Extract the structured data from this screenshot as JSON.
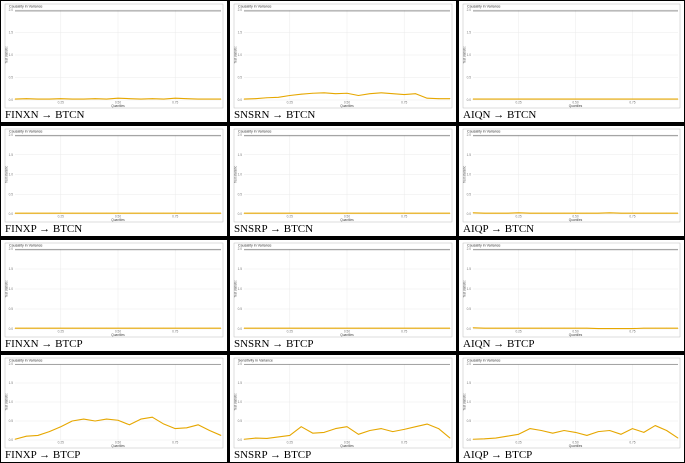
{
  "chart_data": [
    {
      "type": "line",
      "caption": "FINXN → BTCN",
      "title": "Causality in Variance",
      "xlabel": "Quantiles",
      "ylabel": "Test statistic",
      "y_ticks": [
        "2.0",
        "1.5",
        "1.0",
        "0.5",
        "0.0"
      ],
      "x_ticks": [
        "0.25",
        "0.50",
        "0.75"
      ],
      "ylim": [
        0,
        2
      ],
      "xlim": [
        0.05,
        0.95
      ],
      "x": [
        0.05,
        0.1,
        0.15,
        0.2,
        0.25,
        0.3,
        0.35,
        0.4,
        0.45,
        0.5,
        0.55,
        0.6,
        0.65,
        0.7,
        0.75,
        0.8,
        0.85,
        0.9,
        0.95
      ],
      "values": [
        0.02,
        0.03,
        0.02,
        0.02,
        0.03,
        0.02,
        0.02,
        0.03,
        0.02,
        0.04,
        0.03,
        0.02,
        0.03,
        0.02,
        0.04,
        0.03,
        0.02,
        0.02,
        0.02
      ]
    },
    {
      "type": "line",
      "caption": "SNSRN → BTCN",
      "title": "Causality in Variance",
      "xlabel": "Quantiles",
      "ylabel": "Test statistic",
      "y_ticks": [
        "2.0",
        "1.5",
        "1.0",
        "0.5",
        "0.0"
      ],
      "x_ticks": [
        "0.25",
        "0.50",
        "0.75"
      ],
      "ylim": [
        0,
        2
      ],
      "xlim": [
        0.05,
        0.95
      ],
      "x": [
        0.05,
        0.1,
        0.15,
        0.2,
        0.25,
        0.3,
        0.35,
        0.4,
        0.45,
        0.5,
        0.55,
        0.6,
        0.65,
        0.7,
        0.75,
        0.8,
        0.85,
        0.9,
        0.95
      ],
      "values": [
        0.02,
        0.03,
        0.05,
        0.06,
        0.1,
        0.13,
        0.15,
        0.16,
        0.14,
        0.15,
        0.1,
        0.14,
        0.16,
        0.14,
        0.12,
        0.14,
        0.04,
        0.03,
        0.03
      ]
    },
    {
      "type": "line",
      "caption": "AIQN → BTCN",
      "title": "Causality in Variance",
      "xlabel": "Quantiles",
      "ylabel": "Test statistic",
      "y_ticks": [
        "2.0",
        "1.5",
        "1.0",
        "0.5",
        "0.0"
      ],
      "x_ticks": [
        "0.25",
        "0.50",
        "0.75"
      ],
      "ylim": [
        0,
        2
      ],
      "xlim": [
        0.05,
        0.95
      ],
      "x": [
        0.05,
        0.1,
        0.15,
        0.2,
        0.25,
        0.3,
        0.35,
        0.4,
        0.45,
        0.5,
        0.55,
        0.6,
        0.65,
        0.7,
        0.75,
        0.8,
        0.85,
        0.9,
        0.95
      ],
      "values": [
        0.02,
        0.02,
        0.02,
        0.02,
        0.02,
        0.02,
        0.02,
        0.02,
        0.02,
        0.02,
        0.02,
        0.02,
        0.02,
        0.02,
        0.02,
        0.02,
        0.02,
        0.02,
        0.02
      ]
    },
    {
      "type": "line",
      "caption": "FINXP → BTCN",
      "title": "Causality in Variance",
      "xlabel": "Quantiles",
      "ylabel": "Test statistic",
      "y_ticks": [
        "2.0",
        "1.5",
        "1.0",
        "0.5",
        "0.0"
      ],
      "x_ticks": [
        "0.25",
        "0.50",
        "0.75"
      ],
      "ylim": [
        0,
        2
      ],
      "xlim": [
        0.05,
        0.95
      ],
      "x": [
        0.05,
        0.1,
        0.15,
        0.2,
        0.25,
        0.3,
        0.35,
        0.4,
        0.45,
        0.5,
        0.55,
        0.6,
        0.65,
        0.7,
        0.75,
        0.8,
        0.85,
        0.9,
        0.95
      ],
      "values": [
        0.02,
        0.02,
        0.02,
        0.02,
        0.02,
        0.02,
        0.02,
        0.02,
        0.02,
        0.02,
        0.02,
        0.02,
        0.02,
        0.02,
        0.02,
        0.02,
        0.02,
        0.02,
        0.02
      ]
    },
    {
      "type": "line",
      "caption": "SNSRP → BTCN",
      "title": "Causality in Variance",
      "xlabel": "Quantiles",
      "ylabel": "Test statistic",
      "y_ticks": [
        "2.0",
        "1.5",
        "1.0",
        "0.5",
        "0.0"
      ],
      "x_ticks": [
        "0.25",
        "0.50",
        "0.75"
      ],
      "ylim": [
        0,
        2
      ],
      "xlim": [
        0.05,
        0.95
      ],
      "x": [
        0.05,
        0.1,
        0.15,
        0.2,
        0.25,
        0.3,
        0.35,
        0.4,
        0.45,
        0.5,
        0.55,
        0.6,
        0.65,
        0.7,
        0.75,
        0.8,
        0.85,
        0.9,
        0.95
      ],
      "values": [
        0.02,
        0.02,
        0.02,
        0.02,
        0.02,
        0.02,
        0.02,
        0.02,
        0.02,
        0.02,
        0.02,
        0.02,
        0.02,
        0.02,
        0.02,
        0.02,
        0.02,
        0.02,
        0.02
      ]
    },
    {
      "type": "line",
      "caption": "AIQP → BTCN",
      "title": "Causality in Variance",
      "xlabel": "Quantiles",
      "ylabel": "Test statistic",
      "y_ticks": [
        "2.0",
        "1.5",
        "1.0",
        "0.5",
        "0.0"
      ],
      "x_ticks": [
        "0.25",
        "0.50",
        "0.75"
      ],
      "ylim": [
        0,
        2
      ],
      "xlim": [
        0.05,
        0.95
      ],
      "x": [
        0.05,
        0.1,
        0.15,
        0.2,
        0.25,
        0.3,
        0.35,
        0.4,
        0.45,
        0.5,
        0.55,
        0.6,
        0.65,
        0.7,
        0.75,
        0.8,
        0.85,
        0.9,
        0.95
      ],
      "values": [
        0.03,
        0.02,
        0.02,
        0.02,
        0.03,
        0.02,
        0.02,
        0.02,
        0.02,
        0.02,
        0.02,
        0.02,
        0.03,
        0.02,
        0.02,
        0.02,
        0.02,
        0.02,
        0.02
      ]
    },
    {
      "type": "line",
      "caption": "FINXN → BTCP",
      "title": "Causality in Variance",
      "xlabel": "Quantiles",
      "ylabel": "Test statistic",
      "y_ticks": [
        "2.0",
        "1.5",
        "1.0",
        "0.5",
        "0.0"
      ],
      "x_ticks": [
        "0.25",
        "0.50",
        "0.75"
      ],
      "ylim": [
        0,
        2
      ],
      "xlim": [
        0.05,
        0.95
      ],
      "x": [
        0.05,
        0.1,
        0.15,
        0.2,
        0.25,
        0.3,
        0.35,
        0.4,
        0.45,
        0.5,
        0.55,
        0.6,
        0.65,
        0.7,
        0.75,
        0.8,
        0.85,
        0.9,
        0.95
      ],
      "values": [
        0.02,
        0.02,
        0.02,
        0.02,
        0.02,
        0.02,
        0.02,
        0.02,
        0.02,
        0.02,
        0.02,
        0.02,
        0.02,
        0.02,
        0.02,
        0.02,
        0.02,
        0.02,
        0.02
      ]
    },
    {
      "type": "line",
      "caption": "SNSRN → BTCP",
      "title": "Causality in Variance",
      "xlabel": "Quantiles",
      "ylabel": "Test statistic",
      "y_ticks": [
        "2.0",
        "1.5",
        "1.0",
        "0.5",
        "0.0"
      ],
      "x_ticks": [
        "0.25",
        "0.50",
        "0.75"
      ],
      "ylim": [
        0,
        2
      ],
      "xlim": [
        0.05,
        0.95
      ],
      "x": [
        0.05,
        0.1,
        0.15,
        0.2,
        0.25,
        0.3,
        0.35,
        0.4,
        0.45,
        0.5,
        0.55,
        0.6,
        0.65,
        0.7,
        0.75,
        0.8,
        0.85,
        0.9,
        0.95
      ],
      "values": [
        0.02,
        0.02,
        0.02,
        0.02,
        0.02,
        0.02,
        0.02,
        0.02,
        0.02,
        0.02,
        0.02,
        0.02,
        0.02,
        0.02,
        0.02,
        0.02,
        0.02,
        0.02,
        0.02
      ]
    },
    {
      "type": "line",
      "caption": "AIQN → BTCP",
      "title": "Causality in Variance",
      "xlabel": "Quantiles",
      "ylabel": "Test statistic",
      "y_ticks": [
        "2.0",
        "1.5",
        "1.0",
        "0.5",
        "0.0"
      ],
      "x_ticks": [
        "0.25",
        "0.50",
        "0.75"
      ],
      "ylim": [
        0,
        2
      ],
      "xlim": [
        0.05,
        0.95
      ],
      "x": [
        0.05,
        0.1,
        0.15,
        0.2,
        0.25,
        0.3,
        0.35,
        0.4,
        0.45,
        0.5,
        0.55,
        0.6,
        0.65,
        0.7,
        0.75,
        0.8,
        0.85,
        0.9,
        0.95
      ],
      "values": [
        0.03,
        0.02,
        0.02,
        0.02,
        0.02,
        0.02,
        0.02,
        0.02,
        0.02,
        0.02,
        0.02,
        0.01,
        0.01,
        0.01,
        0.01,
        0.02,
        0.02,
        0.02,
        0.02
      ]
    },
    {
      "type": "line",
      "caption": "FINXP → BTCP",
      "title": "Causality in Variance",
      "xlabel": "Quantiles",
      "ylabel": "Test statistic",
      "y_ticks": [
        "2.0",
        "1.5",
        "1.0",
        "0.5",
        "0.0"
      ],
      "x_ticks": [
        "0.25",
        "0.50",
        "0.75"
      ],
      "ylim": [
        0,
        2
      ],
      "xlim": [
        0.05,
        0.95
      ],
      "x": [
        0.05,
        0.1,
        0.15,
        0.2,
        0.25,
        0.3,
        0.35,
        0.4,
        0.45,
        0.5,
        0.55,
        0.6,
        0.65,
        0.7,
        0.75,
        0.8,
        0.85,
        0.9,
        0.95
      ],
      "values": [
        0.02,
        0.1,
        0.12,
        0.22,
        0.35,
        0.5,
        0.55,
        0.5,
        0.55,
        0.52,
        0.4,
        0.55,
        0.6,
        0.42,
        0.3,
        0.32,
        0.4,
        0.25,
        0.12
      ]
    },
    {
      "type": "line",
      "caption": "SNSRP → BTCP",
      "title": "Sensitivity in Variance",
      "xlabel": "Quantiles",
      "ylabel": "Test statistic",
      "y_ticks": [
        "2.0",
        "1.5",
        "1.0",
        "0.5",
        "0.0"
      ],
      "x_ticks": [
        "0.25",
        "0.50",
        "0.75"
      ],
      "ylim": [
        0,
        2
      ],
      "xlim": [
        0.05,
        0.95
      ],
      "x": [
        0.05,
        0.1,
        0.15,
        0.2,
        0.25,
        0.3,
        0.35,
        0.4,
        0.45,
        0.5,
        0.55,
        0.6,
        0.65,
        0.7,
        0.75,
        0.8,
        0.85,
        0.9,
        0.95
      ],
      "values": [
        0.02,
        0.05,
        0.04,
        0.08,
        0.12,
        0.35,
        0.18,
        0.2,
        0.3,
        0.35,
        0.15,
        0.25,
        0.3,
        0.22,
        0.28,
        0.35,
        0.42,
        0.3,
        0.05
      ]
    },
    {
      "type": "line",
      "caption": "AIQP → BTCP",
      "title": "Causality in Variance",
      "xlabel": "Quantiles",
      "ylabel": "Test statistic",
      "y_ticks": [
        "2.0",
        "1.5",
        "1.0",
        "0.5",
        "0.0"
      ],
      "x_ticks": [
        "0.25",
        "0.50",
        "0.75"
      ],
      "ylim": [
        0,
        2
      ],
      "xlim": [
        0.05,
        0.95
      ],
      "x": [
        0.05,
        0.1,
        0.15,
        0.2,
        0.25,
        0.3,
        0.35,
        0.4,
        0.45,
        0.5,
        0.55,
        0.6,
        0.65,
        0.7,
        0.75,
        0.8,
        0.85,
        0.9,
        0.95
      ],
      "values": [
        0.02,
        0.03,
        0.05,
        0.1,
        0.15,
        0.3,
        0.25,
        0.18,
        0.25,
        0.2,
        0.12,
        0.22,
        0.25,
        0.15,
        0.3,
        0.2,
        0.38,
        0.25,
        0.05
      ]
    }
  ],
  "colors": {
    "line": "#e6a700",
    "border": "#000000",
    "panel_bg": "#ffffff",
    "grid": "#ebebeb",
    "hline": "#555555"
  }
}
